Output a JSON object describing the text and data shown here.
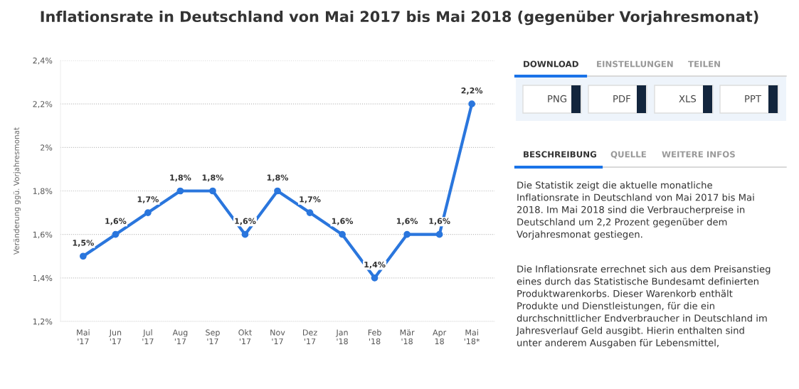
{
  "chart_data": [
    {
      "type": "line",
      "title": "Inflationsrate in Deutschland von Mai 2017 bis Mai 2018 (gegenüber Vorjahresmonat)",
      "ylabel": "Veränderung ggü. Vorjahresmonat",
      "categories": [
        "Mai\n'17",
        "Jun\n'17",
        "Jul\n'17",
        "Aug\n'17",
        "Sep\n'17",
        "Okt\n'17",
        "Nov\n'17",
        "Dez\n'17",
        "Jan\n'18",
        "Feb\n'18",
        "Mär\n'18",
        "Apr\n18",
        "Mai\n'18*"
      ],
      "series": [
        {
          "color": "#2a76dd",
          "values": [
            1.5,
            1.6,
            1.7,
            1.8,
            1.8,
            1.6,
            1.8,
            1.7,
            1.6,
            1.4,
            1.6,
            1.6,
            2.2
          ],
          "value_labels": [
            "1,5%",
            "1,6%",
            "1,7%",
            "1,8%",
            "1,8%",
            "1,6%",
            "1,8%",
            "1,7%",
            "1,6%",
            "1,4%",
            "1,6%",
            "1,6%",
            "2,2%"
          ]
        }
      ],
      "ylim": [
        1.2,
        2.4
      ],
      "yticks": [
        {
          "value": 1.2,
          "label": "1,2%"
        },
        {
          "value": 1.4,
          "label": "1,4%"
        },
        {
          "value": 1.6,
          "label": "1,6%"
        },
        {
          "value": 1.8,
          "label": "1,8%"
        },
        {
          "value": 2.0,
          "label": "2%"
        },
        {
          "value": 2.2,
          "label": "2,2%"
        },
        {
          "value": 2.4,
          "label": "2,4%"
        }
      ],
      "grid": "y",
      "marker": "circle",
      "line_style": "solid"
    },
    {
      "type": "other",
      "annotations": [
        "DOWNLOAD",
        "EINSTELLUNGEN",
        "TEILEN",
        "PNG",
        "PDF",
        "XLS",
        "PPT",
        "BESCHREIBUNG",
        "QUELLE",
        "WEITERE INFOS",
        "Die Statistik zeigt die aktuelle monatliche\nInflationsrate in Deutschland von Mai 2017 bis Mai\n2018. Im Mai 2018 sind die Verbraucherpreise in\nDeutschland um 2,2 Prozent gegenüber dem\nVorjahresmonat gestiegen.",
        "Die Inflationsrate errechnet sich aus dem Preisanstieg\neines durch das Statistische Bundesamt definierten\nProduktwarenkorbs. Dieser Warenkorb enthält\nProdukte und Dienstleistungen, für die ein\ndurchschnittlicher Endverbraucher in Deutschland im\nJahresverlauf Geld ausgibt. Hierin enthalten sind\nunter anderem Ausgaben für Lebensmittel,"
      ]
    }
  ]
}
